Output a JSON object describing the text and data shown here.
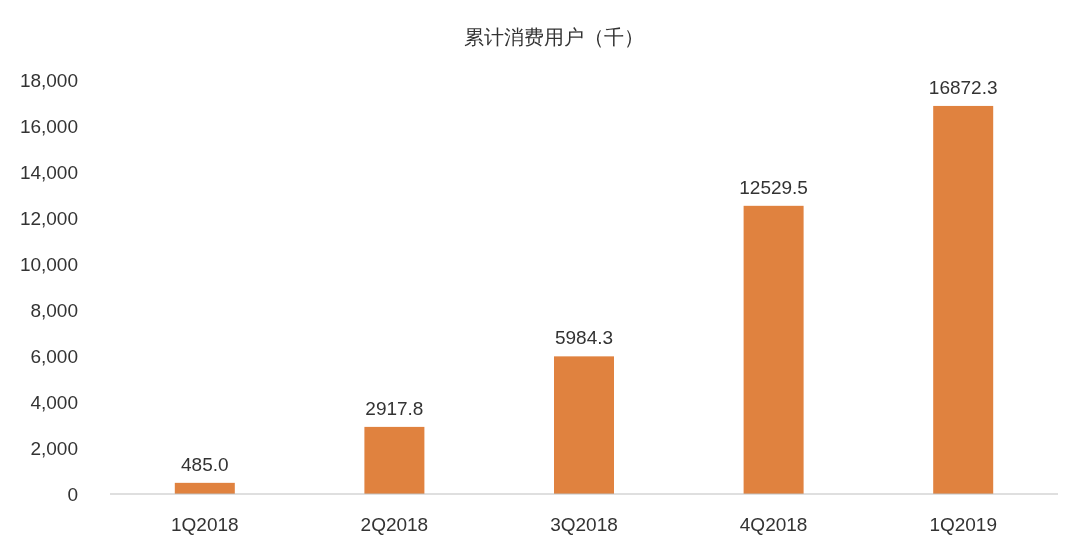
{
  "chart_data": {
    "type": "bar",
    "title": "累计消费用户（千）",
    "categories": [
      "1Q2018",
      "2Q2018",
      "3Q2018",
      "4Q2018",
      "1Q2019"
    ],
    "values": [
      485.0,
      2917.8,
      5984.3,
      12529.5,
      16872.3
    ],
    "value_labels": [
      "485.0",
      "2917.8",
      "5984.3",
      "12529.5",
      "16872.3"
    ],
    "color": "#e0823f",
    "ylim": [
      0,
      18000
    ],
    "yticks": [
      0,
      {
        "value": 2000,
        "label": "2,000"
      },
      {
        "value": 4000,
        "label": "4,000"
      },
      {
        "value": 6000,
        "label": "6,000"
      },
      {
        "value": 8000,
        "label": "8,000"
      },
      {
        "value": 10000,
        "label": "10,000"
      },
      {
        "value": 12000,
        "label": "12,000"
      },
      {
        "value": 14000,
        "label": "14,000"
      },
      {
        "value": 16000,
        "label": "16,000"
      },
      {
        "value": 18000,
        "label": "18,000"
      }
    ],
    "grid": false
  }
}
